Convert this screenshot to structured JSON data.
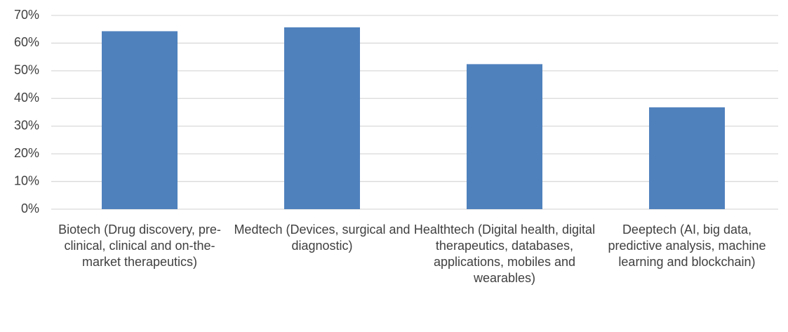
{
  "chart_data": {
    "type": "bar",
    "categories": [
      "Biotech (Drug discovery, pre-clinical, clinical and on-the-market therapeutics)",
      "Medtech (Devices, surgical and diagnostic)",
      "Healthtech (Digital health, digital therapeutics, databases, applications, mobiles and wearables)",
      "Deeptech (AI, big data, predictive analysis, machine learning and blockchain)"
    ],
    "values": [
      64.3,
      65.7,
      52.4,
      36.8
    ],
    "color": "#4f81bd",
    "ylim": [
      0,
      70
    ],
    "yticks": [
      {
        "value": 0,
        "label": "0%"
      },
      {
        "value": 10,
        "label": "10%"
      },
      {
        "value": 20,
        "label": "20%"
      },
      {
        "value": 30,
        "label": "30%"
      },
      {
        "value": 40,
        "label": "40%"
      },
      {
        "value": 50,
        "label": "50%"
      },
      {
        "value": 60,
        "label": "60%"
      },
      {
        "value": 70,
        "label": "70%"
      }
    ],
    "grid": true
  }
}
